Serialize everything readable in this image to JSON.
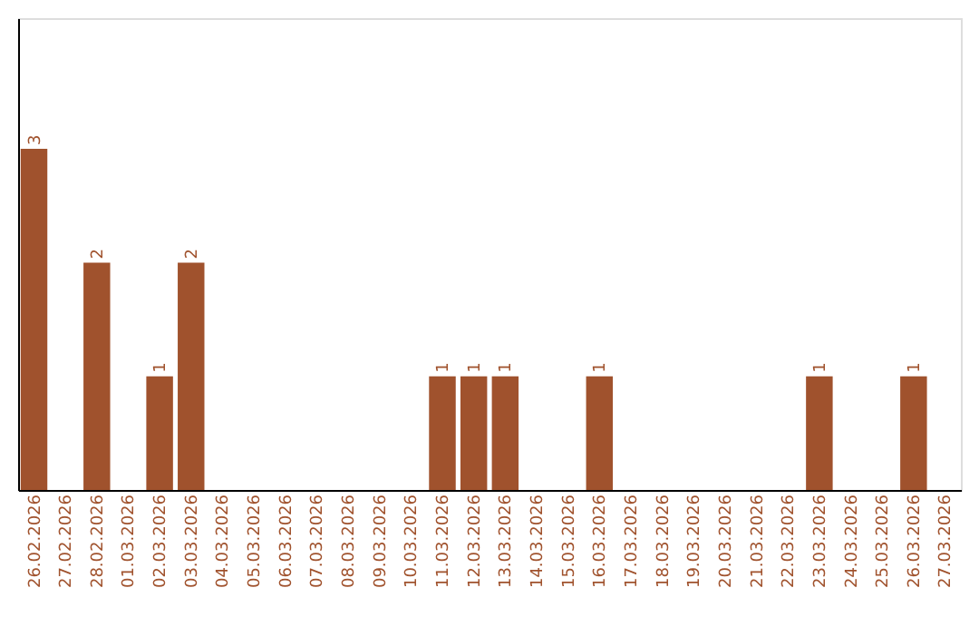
{
  "chart_data": {
    "type": "bar",
    "categories": [
      "26.02.2026",
      "27.02.2026",
      "28.02.2026",
      "01.03.2026",
      "02.03.2026",
      "03.03.2026",
      "04.03.2026",
      "05.03.2026",
      "06.03.2026",
      "07.03.2026",
      "08.03.2026",
      "09.03.2026",
      "10.03.2026",
      "11.03.2026",
      "12.03.2026",
      "13.03.2026",
      "14.03.2026",
      "15.03.2026",
      "16.03.2026",
      "17.03.2026",
      "18.03.2026",
      "19.03.2026",
      "20.03.2026",
      "21.03.2026",
      "22.03.2026",
      "23.03.2026",
      "24.03.2026",
      "25.03.2026",
      "26.03.2026",
      "27.03.2026"
    ],
    "values": [
      3,
      0,
      2,
      0,
      1,
      2,
      0,
      0,
      0,
      0,
      0,
      0,
      0,
      1,
      1,
      1,
      0,
      0,
      1,
      0,
      0,
      0,
      0,
      0,
      0,
      1,
      0,
      0,
      1,
      0
    ],
    "value_labels": [
      "3",
      null,
      "2",
      null,
      "1",
      "2",
      null,
      null,
      null,
      null,
      null,
      null,
      null,
      "1",
      "1",
      "1",
      null,
      null,
      "1",
      null,
      null,
      null,
      null,
      null,
      null,
      "1",
      null,
      null,
      "1",
      null
    ],
    "color": "#a0522d",
    "ylim": [
      0,
      4.15
    ],
    "tick_labels": "x",
    "grid": false
  }
}
